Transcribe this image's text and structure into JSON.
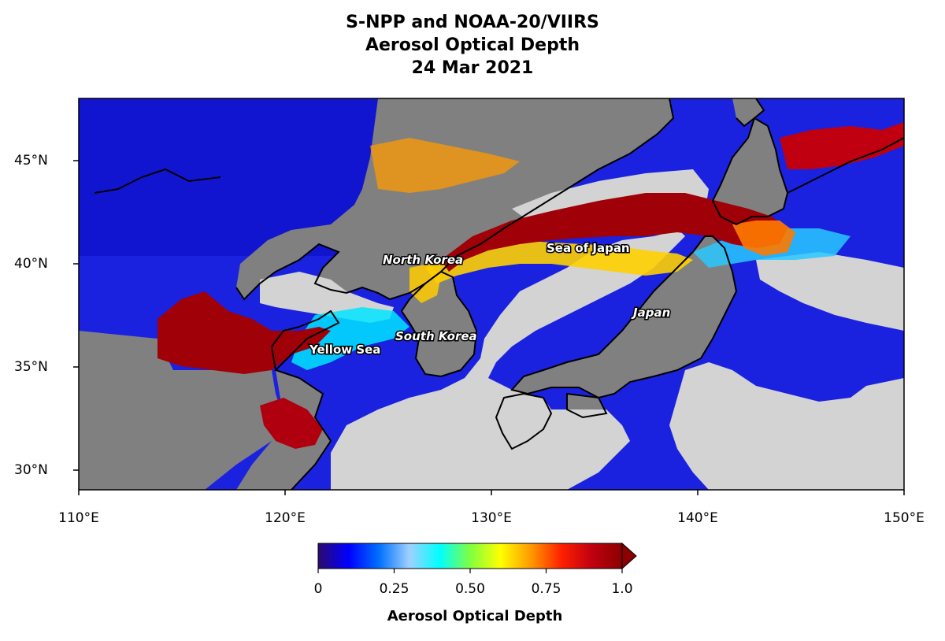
{
  "title": {
    "line1": "S-NPP and NOAA-20/VIIRS",
    "line2": "Aerosol Optical Depth",
    "line3": "24 Mar 2021"
  },
  "map": {
    "lon_range": [
      110,
      150
    ],
    "lat_range": [
      29,
      48
    ],
    "y_ticks": [
      "45°N",
      "40°N",
      "35°N",
      "30°N"
    ],
    "x_ticks": [
      "110°E",
      "120°E",
      "130°E",
      "140°E",
      "150°E"
    ],
    "labels": {
      "north_korea": "North Korea",
      "sea_of_japan": "Sea of Japan",
      "japan": "Japan",
      "south_korea": "South Korea",
      "yellow_sea": "Yellow Sea"
    },
    "colors": {
      "land_nodata": "#808080",
      "ocean_nodata": "#d3d3d3",
      "coastline": "#000000"
    }
  },
  "colorbar": {
    "label": "Aerosol Optical Depth",
    "range": [
      0,
      1.0
    ],
    "extend": "max",
    "ticks": [
      "0",
      "0.25",
      "0.50",
      "0.75",
      "1.0"
    ],
    "colors": [
      "#2c0a6e",
      "#0000ff",
      "#0070ff",
      "#9fd0ff",
      "#00ffff",
      "#80ff40",
      "#ffff00",
      "#ff9900",
      "#ff2000",
      "#c00010",
      "#8b0000"
    ]
  }
}
